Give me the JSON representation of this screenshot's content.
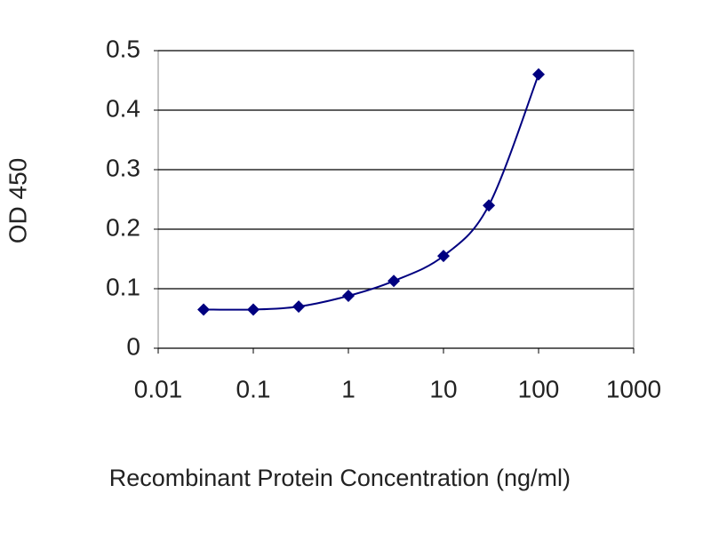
{
  "chart_data": {
    "type": "line",
    "x_label": "Recombinant Protein Concentration (ng/ml)",
    "y_label": "OD 450",
    "x": [
      0.03,
      0.1,
      0.3,
      1,
      3,
      10,
      30,
      100
    ],
    "series": [
      {
        "color": "#000080",
        "values": [
          0.065,
          0.065,
          0.07,
          0.088,
          0.113,
          0.155,
          0.24,
          0.46
        ]
      }
    ],
    "xlim": [
      0.01,
      1000
    ],
    "xticks": [
      0.01,
      0.1,
      1,
      10,
      100,
      1000
    ],
    "xscale": "log",
    "ylim": [
      0,
      0.5
    ],
    "yticks": [
      0,
      0.1,
      0.2,
      0.3,
      0.4,
      0.5
    ],
    "grid": true
  }
}
